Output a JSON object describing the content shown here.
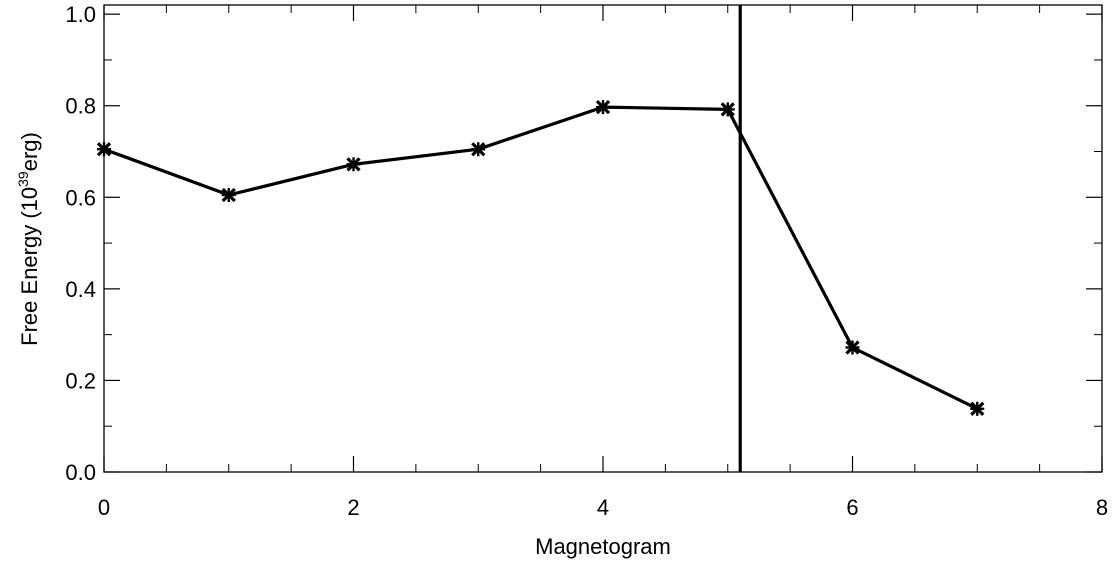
{
  "chart_data": {
    "type": "line",
    "xlabel": "Magnetogram",
    "ylabel": {
      "prefix": "Free Energy  (10",
      "exponent": "39",
      "suffix": "erg)"
    },
    "xlim": [
      0,
      8
    ],
    "ylim": [
      0,
      1.02
    ],
    "x_ticks": [
      0,
      2,
      4,
      6,
      8
    ],
    "x_tick_labels": [
      "0",
      "2",
      "4",
      "6",
      "8"
    ],
    "x_minor_step": 0.5,
    "y_ticks": [
      0.0,
      0.2,
      0.4,
      0.6,
      0.8,
      1.0
    ],
    "y_tick_labels": [
      "0.0",
      "0.2",
      "0.4",
      "0.6",
      "0.8",
      "1.0"
    ],
    "y_minor_step": 0.1,
    "grid": false,
    "marker": "asterisk",
    "line_color": "#000000",
    "x": [
      0,
      1,
      2,
      3,
      4,
      5,
      6,
      7
    ],
    "values": [
      0.705,
      0.605,
      0.672,
      0.705,
      0.797,
      0.792,
      0.272,
      0.138
    ],
    "vline_x": 5.1
  }
}
